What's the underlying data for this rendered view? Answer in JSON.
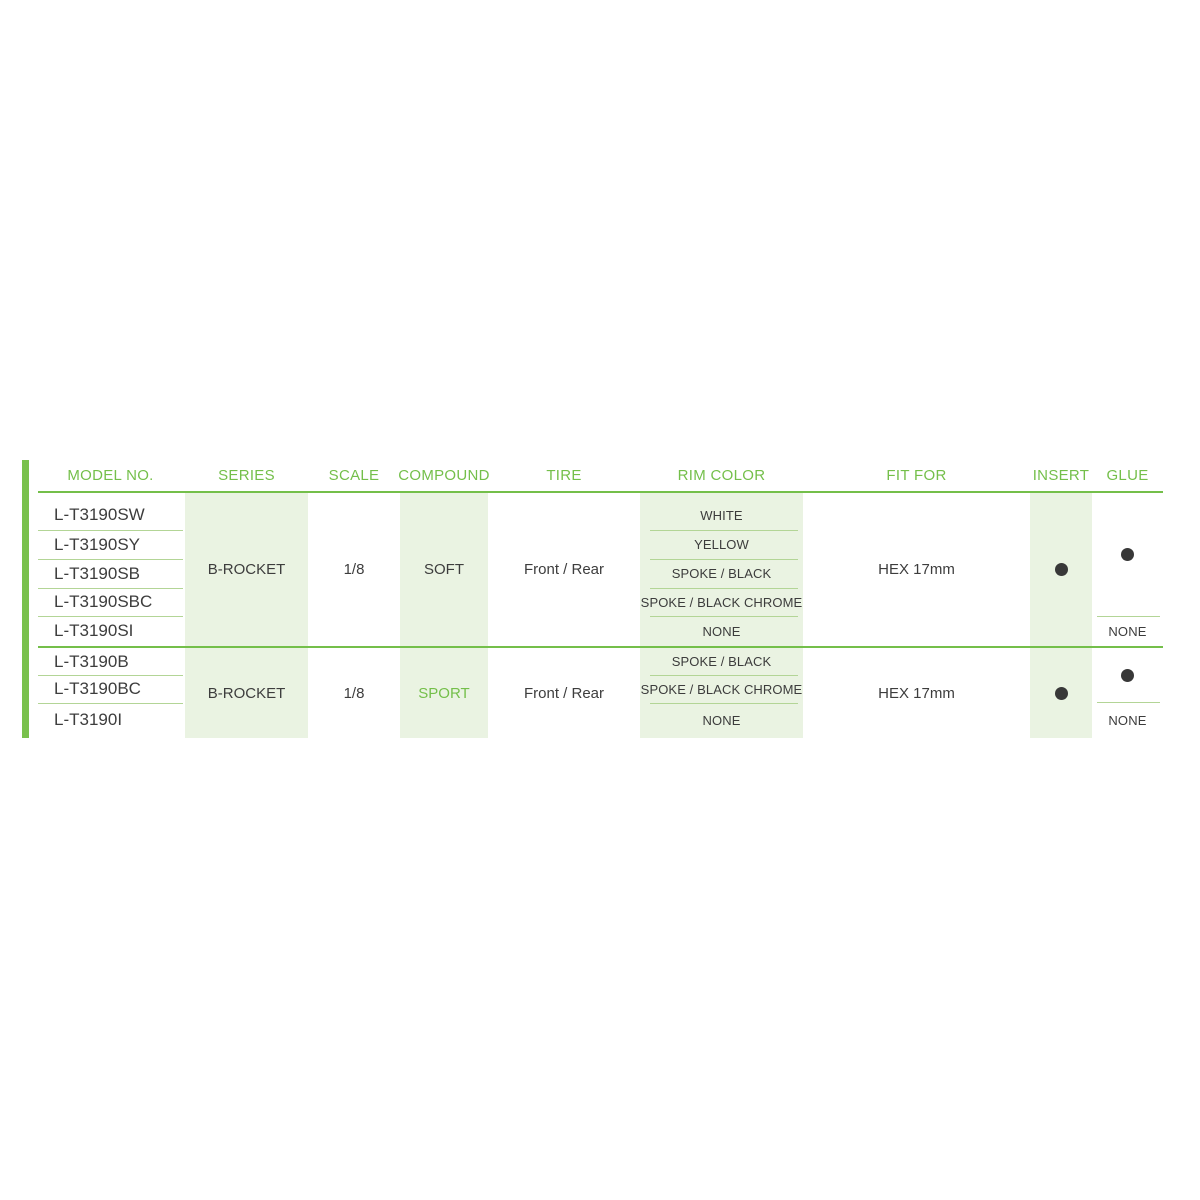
{
  "colors": {
    "accent_green": "#74bf4a",
    "bar_green": "#79c14c",
    "shade_green": "#eaf3e2",
    "divider_green": "#b3d596",
    "text_dark": "#3d3d3d",
    "dot_dark": "#383838"
  },
  "table": {
    "headers": [
      "MODEL NO.",
      "SERIES",
      "SCALE",
      "COMPOUND",
      "TIRE",
      "RIM COLOR",
      "FIT FOR",
      "INSERT",
      "GLUE"
    ],
    "groups": [
      {
        "models": [
          "L-T3190SW",
          "L-T3190SY",
          "L-T3190SB",
          "L-T3190SBC",
          "L-T3190SI"
        ],
        "series": "B-ROCKET",
        "scale": "1/8",
        "compound": "SOFT",
        "tire": "Front / Rear",
        "rim_colors": [
          "WHITE",
          "YELLOW",
          "SPOKE / BLACK",
          "SPOKE / BLACK CHROME",
          "NONE"
        ],
        "fit_for": "HEX 17mm",
        "insert": "dot",
        "glue_dot": "dot",
        "glue_none": "NONE"
      },
      {
        "models": [
          "L-T3190B",
          "L-T3190BC",
          "L-T3190I"
        ],
        "series": "B-ROCKET",
        "scale": "1/8",
        "compound": "SPORT",
        "tire": "Front / Rear",
        "rim_colors": [
          "SPOKE / BLACK",
          "SPOKE / BLACK CHROME",
          "NONE"
        ],
        "fit_for": "HEX 17mm",
        "insert": "dot",
        "glue_dot": "dot",
        "glue_none": "NONE"
      }
    ]
  }
}
